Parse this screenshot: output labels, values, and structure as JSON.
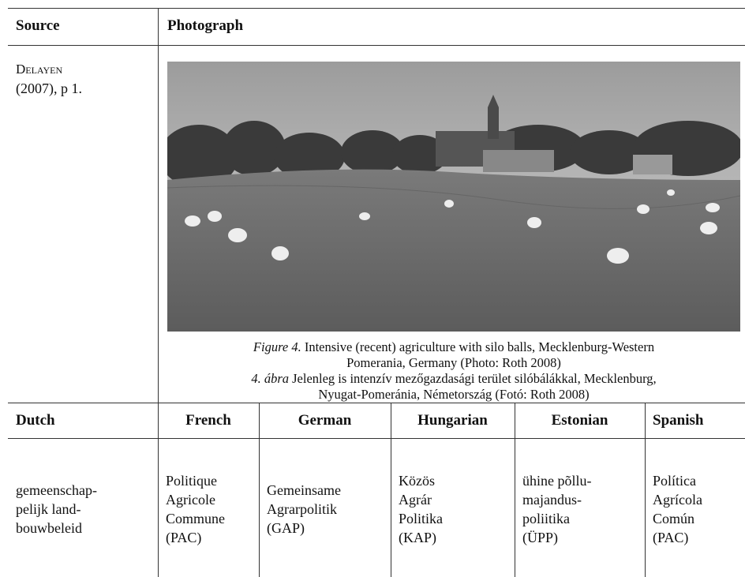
{
  "table": {
    "header": [
      "Source",
      "Photograph"
    ],
    "source": {
      "name": "Delayen",
      "citation": "(2007), p 1."
    },
    "caption": {
      "en_label": "Figure 4.",
      "en_text": [
        " Intensive (recent) agriculture with silo balls, Mecklenburg-Western",
        "Pomerania, Germany (Photo: Roth 2008)"
      ],
      "hu_label": "4. ábra",
      "hu_text": [
        " Jelenleg is intenzív mezőgazdasági terület silóbálákkal, Mecklenburg,",
        "Nyugat-Pomeránia, Németország (Fotó: Roth 2008)"
      ]
    },
    "columns": [
      "Dutch",
      "French",
      "German",
      "Hungarian",
      "Estonian",
      "Spanish"
    ],
    "terms": [
      [
        "gemeenschap-",
        "pelijk land-",
        "bouwbeleid"
      ],
      [
        "Politique",
        "Agricole",
        "Commune",
        "(PAC)"
      ],
      [
        "Gemeinsame",
        "Agrarpolitik",
        "(GAP)"
      ],
      [
        "Közös",
        "Agrár",
        "Politika",
        "(KAP)"
      ],
      [
        "ühine põllu-",
        "majandus-",
        "poliitika",
        "(ÜPP)"
      ],
      [
        "Política",
        "Agrícola",
        "Común",
        "(PAC)"
      ]
    ]
  }
}
